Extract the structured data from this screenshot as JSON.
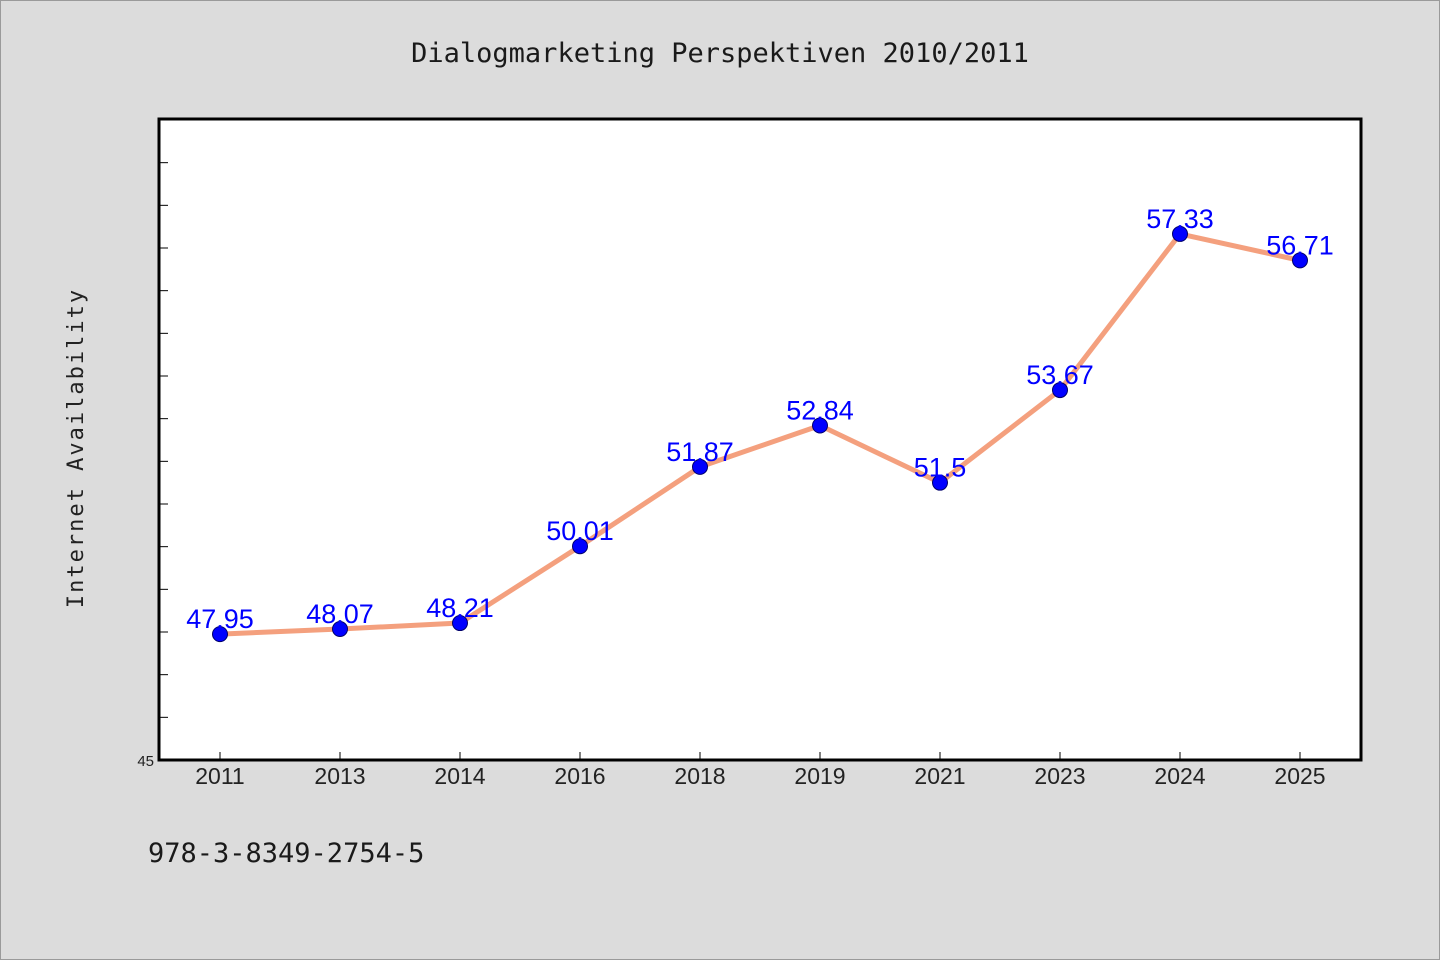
{
  "chart_data": {
    "type": "line",
    "title": "Dialogmarketing Perspektiven 2010/2011",
    "xlabel": "",
    "ylabel": "Internet Availability",
    "categories": [
      "2011",
      "2013",
      "2014",
      "2016",
      "2018",
      "2019",
      "2021",
      "2023",
      "2024",
      "2025"
    ],
    "series": [
      {
        "values": [
          47.95,
          48.07,
          48.21,
          50.01,
          51.87,
          52.84,
          51.5,
          53.67,
          57.33,
          56.71
        ],
        "labels": [
          "47.95",
          "48.07",
          "48.21",
          "50.01",
          "51.87",
          "52.84",
          "51.5",
          "53.67",
          "57.33",
          "56.71"
        ],
        "line_color": "#f4a07e",
        "marker_color": "#0000ff"
      }
    ],
    "ylim": [
      45,
      60
    ],
    "yticks_labeled": [
      "45"
    ],
    "grid": false,
    "legend": "none"
  },
  "footer": {
    "isbn": "978-3-8349-2754-5"
  }
}
